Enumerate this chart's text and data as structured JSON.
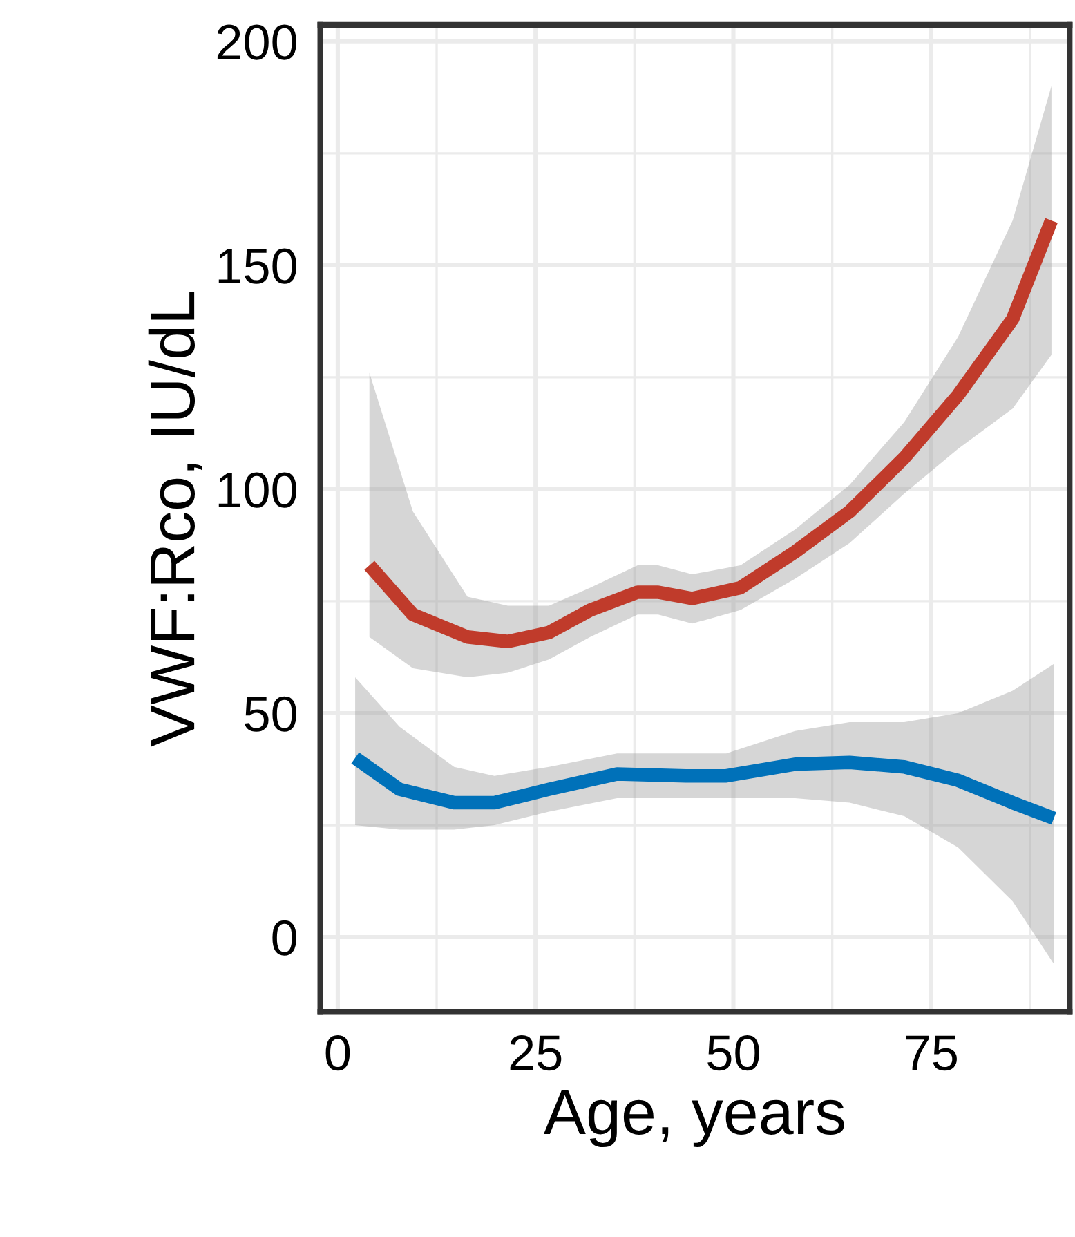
{
  "chart_data": {
    "type": "line",
    "xlabel": "Age, years",
    "ylabel": "VWF:Rco, IU/dL",
    "xlim": [
      -2.2,
      92.5
    ],
    "ylim": [
      -16.7,
      203.7
    ],
    "xticks": [
      0,
      25,
      50,
      75
    ],
    "yticks": [
      0,
      50,
      100,
      150,
      200
    ],
    "grid": true,
    "legend": false,
    "series": [
      {
        "color": "#c03b2b",
        "x": [
          4,
          9.5,
          16.4,
          21.5,
          26.7,
          31.9,
          37.9,
          40.5,
          44.8,
          50.9,
          57.8,
          64.7,
          71.6,
          78.4,
          85.3,
          90.2
        ],
        "values": [
          83,
          72,
          67,
          66,
          68,
          73,
          77,
          77,
          75.6,
          78,
          86,
          95,
          107,
          121,
          138,
          160
        ],
        "upper": [
          126,
          95,
          76,
          74,
          74,
          78,
          83,
          83,
          81,
          83,
          91,
          101,
          115,
          134,
          160,
          190
        ],
        "lower": [
          67,
          60,
          58,
          59,
          62,
          67,
          72,
          72,
          70,
          73,
          80,
          88,
          99,
          109,
          118,
          130
        ]
      },
      {
        "color": "#0071b9",
        "x": [
          2.2,
          7.8,
          14.7,
          19.8,
          26.7,
          35.3,
          44,
          49.1,
          57.8,
          64.7,
          71.6,
          78.4,
          85.3,
          90.5
        ],
        "values": [
          40,
          33,
          30,
          30,
          33,
          36.4,
          36,
          36,
          38.6,
          39,
          38,
          35,
          30,
          26.5
        ],
        "upper": [
          58,
          47,
          38,
          36,
          38,
          41,
          41,
          41,
          46,
          48,
          48,
          50,
          55,
          61
        ],
        "lower": [
          25,
          24,
          24,
          25,
          28,
          31,
          31,
          31,
          31,
          30,
          27,
          20,
          8,
          -6
        ]
      }
    ]
  }
}
